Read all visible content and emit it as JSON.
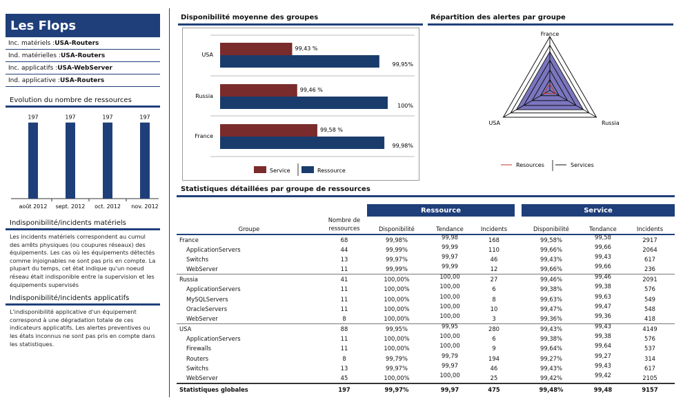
{
  "brand": "Les Flops",
  "indicators": [
    {
      "label": "Inc. matériels :",
      "value": "USA-Routers"
    },
    {
      "label": "Ind. matérielles :",
      "value": "USA-Routers"
    },
    {
      "label": "Inc. applicatifs :",
      "value": "USA-WebServer"
    },
    {
      "label": "Ind. applicative :",
      "value": "USA-Routers"
    }
  ],
  "evolution": {
    "title": "Evolution du nombre de ressources",
    "chart_ref": 0
  },
  "sections": {
    "hw_title": "Indisponibilité/incidents matériels",
    "hw_text": "Les incidents matériels correspondent au cumul des arrêts physiques (ou coupures réseaux) des équipements. Les cas où les équipements détectés comme injoignables ne sont pas pris en compte. La plupart du temps, cet état indique qu'un noeud réseau était indisponible entre la supervision et les équipements supervisés",
    "app_title": "Indisponibilité/incidents applicatifs",
    "app_text": "L'indisponibilité applicative d'un équipement correspond à une dégradation totale de ces indicateurs applicatifs. Les alertes preventives ou les états inconnus ne sont pas pris en compte dans les statistiques."
  },
  "availability_title": "Disponibilité moyenne des groupes",
  "radar_title": "Répartition des alertes par groupe",
  "table_title": "Statistiques détaillées par groupe de ressources",
  "colors": {
    "navy": "#1f3f7a",
    "service": "#7a2b2b",
    "resource": "#1a3c6c",
    "radar_fill": "#7b76bf"
  },
  "chart_data": [
    {
      "type": "bar",
      "title": "Evolution du nombre de ressources",
      "categories": [
        "août 2012",
        "sept. 2012",
        "oct. 2012",
        "nov. 2012"
      ],
      "values": [
        197,
        197,
        197,
        197
      ],
      "labels": [
        "197",
        "197",
        "197",
        "197"
      ]
    },
    {
      "type": "bar",
      "title": "Disponibilité moyenne des groupes",
      "orientation": "horizontal",
      "categories": [
        "USA",
        "Russia",
        "France"
      ],
      "series": [
        {
          "name": "Service",
          "values": [
            99.43,
            99.46,
            99.58
          ],
          "labels": [
            "99,43 %",
            "99,46 %",
            "99,58 %"
          ]
        },
        {
          "name": "Ressource",
          "values": [
            99.95,
            100,
            99.98
          ],
          "labels": [
            "99,95%",
            "100%",
            "99,98%"
          ]
        }
      ],
      "legend": "bottom"
    },
    {
      "type": "radar",
      "title": "Répartition des alertes par groupe",
      "axes": [
        "France",
        "Russia",
        "USA"
      ],
      "series": [
        {
          "name": "Resources"
        },
        {
          "name": "Services"
        }
      ],
      "legend": "bottom"
    }
  ],
  "table": {
    "headers": {
      "groupe": "Groupe",
      "nombre": "Nombre de ressources",
      "ressource": "Ressource",
      "service": "Service",
      "dispo": "Disponibilité",
      "tendance": "Tendance",
      "incidents": "Incidents"
    },
    "rows": [
      {
        "kind": "group",
        "cells": [
          "France",
          "68",
          "99,98%",
          "99,98",
          "168",
          "99,58%",
          "99,58",
          "2917"
        ]
      },
      {
        "kind": "child",
        "cells": [
          "ApplicationServers",
          "44",
          "99,99%",
          "99,99",
          "110",
          "99,66%",
          "99,66",
          "2064"
        ]
      },
      {
        "kind": "child",
        "cells": [
          "Switchs",
          "13",
          "99,97%",
          "99,97",
          "46",
          "99,43%",
          "99,43",
          "617"
        ]
      },
      {
        "kind": "child",
        "cells": [
          "WebServer",
          "11",
          "99,99%",
          "99,99",
          "12",
          "99,66%",
          "99,66",
          "236"
        ]
      },
      {
        "kind": "group",
        "cells": [
          "Russia",
          "41",
          "100,00%",
          "100,00",
          "27",
          "99,46%",
          "99,46",
          "2091"
        ]
      },
      {
        "kind": "child",
        "cells": [
          "ApplicationServers",
          "11",
          "100,00%",
          "100,00",
          "6",
          "99,38%",
          "99,38",
          "576"
        ]
      },
      {
        "kind": "child",
        "cells": [
          "MySQLServers",
          "11",
          "100,00%",
          "100,00",
          "8",
          "99,63%",
          "99,63",
          "549"
        ]
      },
      {
        "kind": "child",
        "cells": [
          "OracleServers",
          "11",
          "100,00%",
          "100,00",
          "10",
          "99,47%",
          "99,47",
          "548"
        ]
      },
      {
        "kind": "child",
        "cells": [
          "WebServer",
          "8",
          "100,00%",
          "100,00",
          "3",
          "99,36%",
          "99,36",
          "418"
        ]
      },
      {
        "kind": "group",
        "cells": [
          "USA",
          "88",
          "99,95%",
          "99,95",
          "280",
          "99,43%",
          "99,43",
          "4149"
        ]
      },
      {
        "kind": "child",
        "cells": [
          "ApplicationServers",
          "11",
          "100,00%",
          "100,00",
          "6",
          "99,38%",
          "99,38",
          "576"
        ]
      },
      {
        "kind": "child",
        "cells": [
          "Firewalls",
          "11",
          "100,00%",
          "100,00",
          "9",
          "99,64%",
          "99,64",
          "537"
        ]
      },
      {
        "kind": "child",
        "cells": [
          "Routers",
          "8",
          "99,79%",
          "99,79",
          "194",
          "99,27%",
          "99,27",
          "314"
        ]
      },
      {
        "kind": "child",
        "cells": [
          "Switchs",
          "13",
          "99,97%",
          "99,97",
          "46",
          "99,43%",
          "99,43",
          "617"
        ]
      },
      {
        "kind": "child",
        "cells": [
          "WebServer",
          "45",
          "100,00%",
          "100,00",
          "25",
          "99,42%",
          "99,42",
          "2105"
        ]
      }
    ],
    "total": [
      "Statistiques globales",
      "197",
      "99,97%",
      "99,97",
      "475",
      "99,48%",
      "99,48",
      "9157"
    ]
  }
}
